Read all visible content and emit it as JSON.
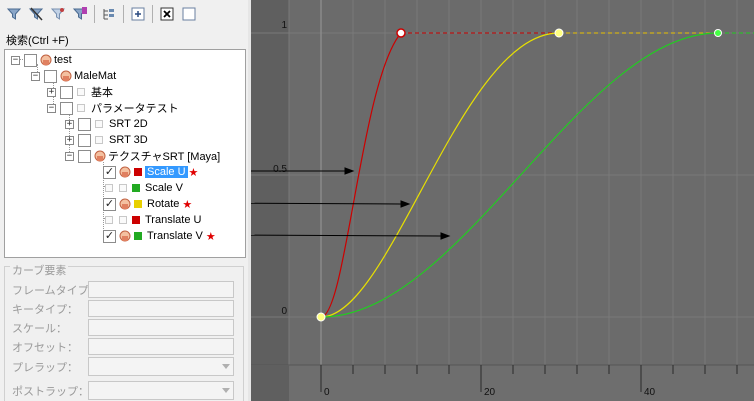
{
  "toolbar": {
    "icons": [
      "filter-icon",
      "filter-clear-icon",
      "filter-funnel-icon",
      "filter-bookmark-icon",
      "tree-expand-icon",
      "add-icon",
      "close-box-icon",
      "empty-box-icon"
    ]
  },
  "search": {
    "label": "検索(Ctrl +F)"
  },
  "tree": {
    "root": "test",
    "material": "MaleMat",
    "basic": "基本",
    "param_test": "パラメータテスト",
    "srt2d": "SRT 2D",
    "srt3d": "SRT 3D",
    "tex_srt": "テクスチャSRT [Maya]",
    "curves": [
      {
        "label": "Scale U",
        "color": "#cc0000",
        "checked": true,
        "selected": true,
        "starred": true
      },
      {
        "label": "Scale V",
        "color": "#22aa22",
        "checked": false,
        "selected": false,
        "starred": false
      },
      {
        "label": "Rotate",
        "color": "#e8d000",
        "checked": true,
        "selected": false,
        "starred": true
      },
      {
        "label": "Translate U",
        "color": "#cc0000",
        "checked": false,
        "selected": false,
        "starred": false
      },
      {
        "label": "Translate V",
        "color": "#22aa22",
        "checked": true,
        "selected": false,
        "starred": true
      }
    ],
    "star": "★"
  },
  "curve_props": {
    "title": "カーブ要素",
    "frame_type": "フレームタイプ：",
    "key_type": "キータイプ：",
    "scale": "スケール：",
    "offset": "オフセット：",
    "pre_wrap": "プレラップ：",
    "post_wrap": "ポストラップ："
  },
  "graph": {
    "y_labels": [
      "1",
      "0.5",
      "0"
    ],
    "x_labels": [
      "0",
      "20",
      "40"
    ],
    "colors": {
      "red": "#cc0000",
      "yellow": "#e8e000",
      "green": "#22cc22",
      "bg": "#6b6b6b",
      "bg_dark": "#5c5c5c"
    }
  }
}
